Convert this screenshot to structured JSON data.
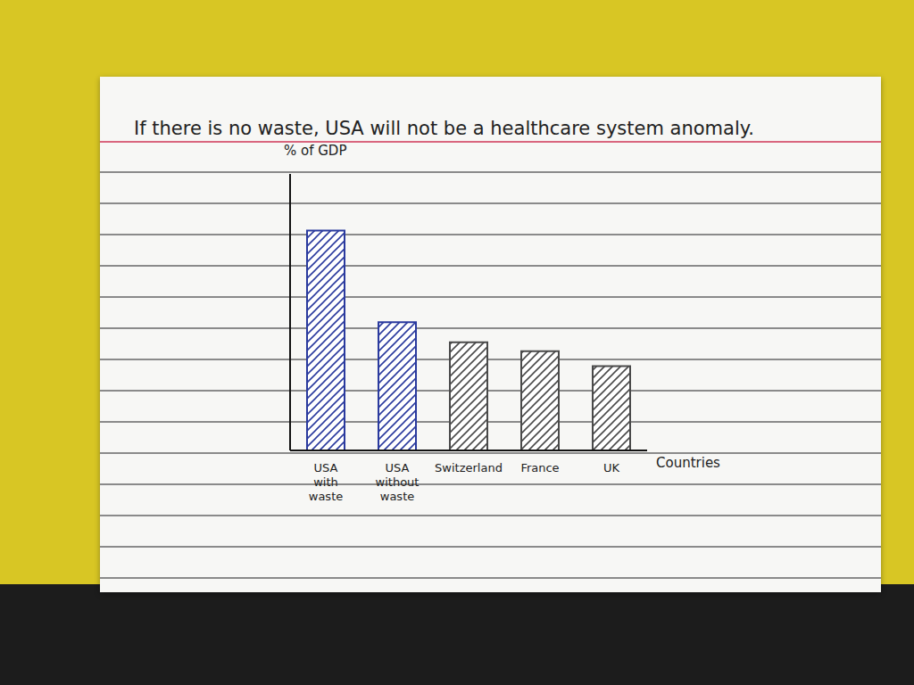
{
  "chart_data": {
    "type": "bar",
    "title": "If there is no waste, USA will not be a healthcare system anomaly.",
    "y_label": "% of GDP",
    "x_label": "Countries",
    "categories": [
      "USA with waste",
      "USA without waste",
      "Switzerland",
      "France",
      "UK"
    ],
    "values": [
      17.5,
      10.2,
      8.6,
      7.9,
      6.7
    ],
    "colors": [
      "#2a3a9e",
      "#2a3a9e",
      "#4a4a4a",
      "#4a4a4a",
      "#4a4a4a"
    ],
    "ylim": [
      0,
      22
    ],
    "grid": false,
    "tick_labels": false
  }
}
